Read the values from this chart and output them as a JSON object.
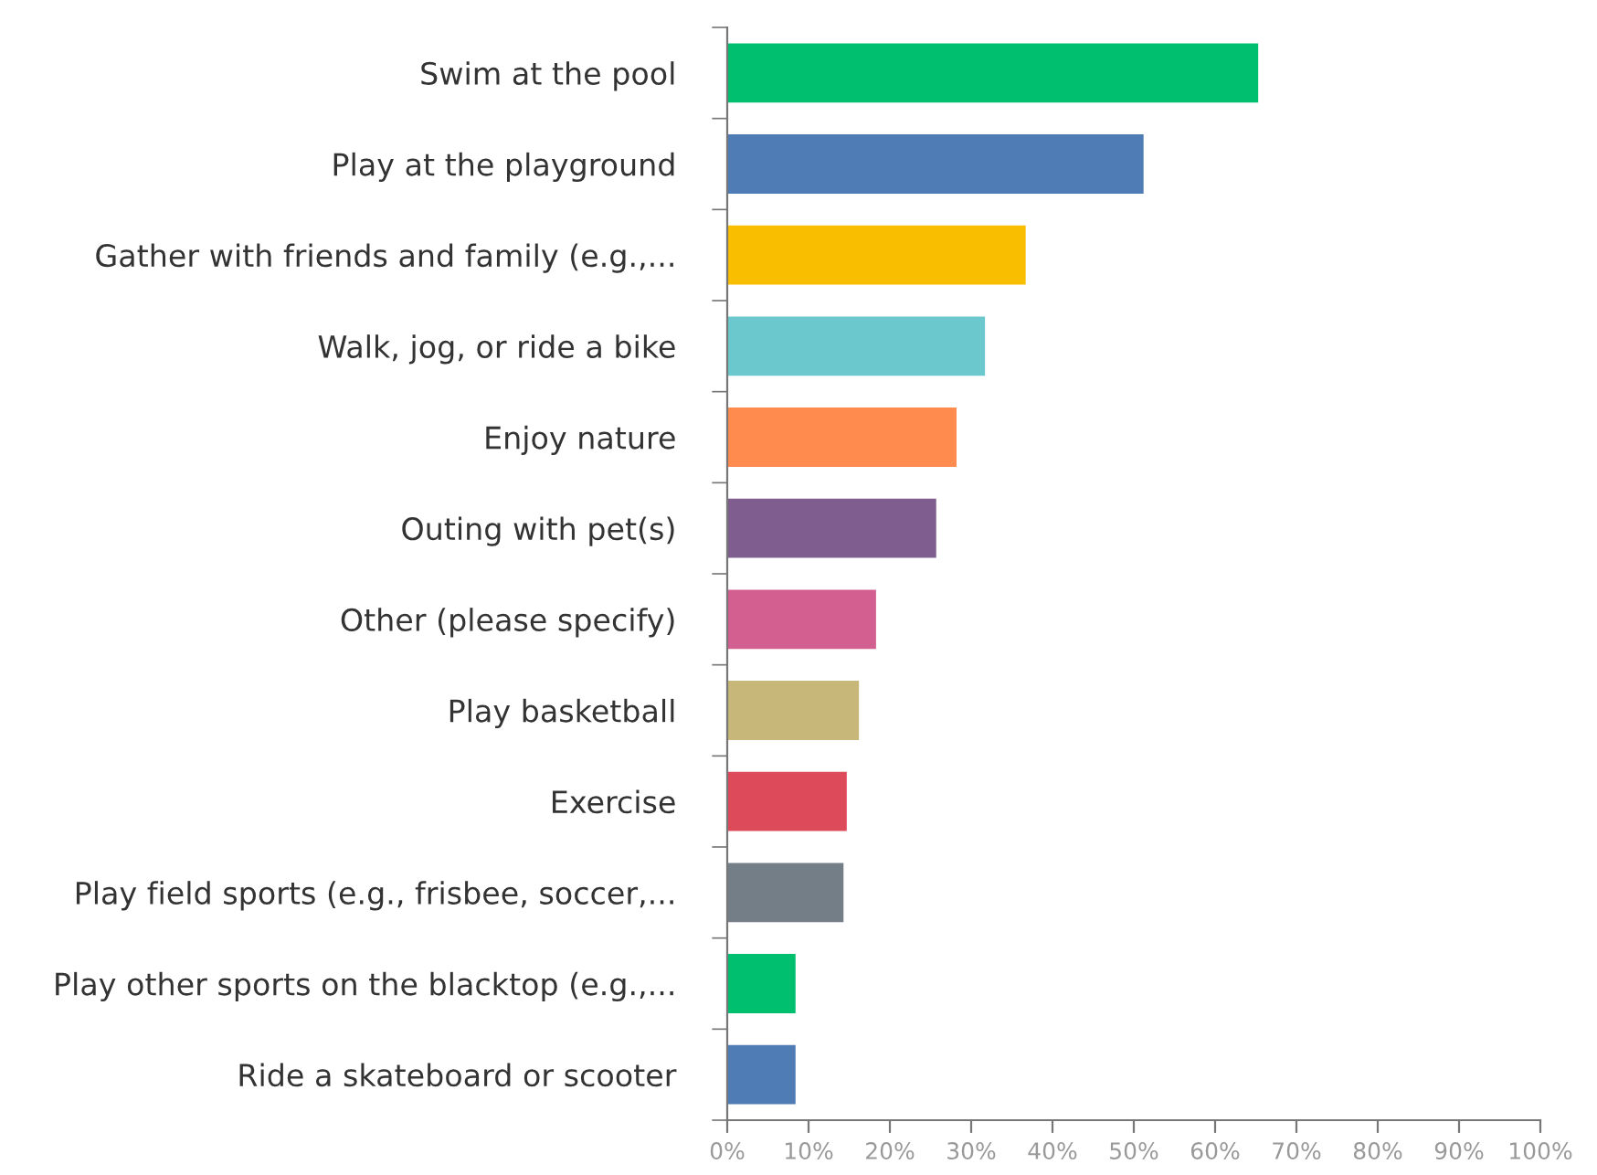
{
  "chart_data": {
    "type": "bar",
    "orientation": "horizontal",
    "categories": [
      "Swim at the pool",
      "Play at the playground",
      "Gather with friends and family (e.g.,...",
      "Walk, jog, or ride a bike",
      "Enjoy nature",
      "Outing with pet(s)",
      "Other (please specify)",
      "Play basketball",
      "Exercise",
      "Play field sports (e.g., frisbee, soccer,...",
      "Play other sports on the blacktop (e.g.,...",
      "Ride a skateboard or scooter"
    ],
    "values": [
      65.3,
      51.2,
      36.7,
      31.7,
      28.2,
      25.7,
      18.3,
      16.2,
      14.7,
      14.3,
      8.4,
      8.4
    ],
    "colors": [
      "#00bf6f",
      "#507cb6",
      "#f9be00",
      "#6bc8cd",
      "#ff8b4f",
      "#7f5e8f",
      "#d25f90",
      "#c7b879",
      "#dd4b5a",
      "#747e86",
      "#00bf6f",
      "#507cb6"
    ],
    "xlim": [
      0,
      100
    ],
    "xticks": [
      {
        "value": 0,
        "label": "0%"
      },
      {
        "value": 10,
        "label": "10%"
      },
      {
        "value": 20,
        "label": "20%"
      },
      {
        "value": 30,
        "label": "30%"
      },
      {
        "value": 40,
        "label": "40%"
      },
      {
        "value": 50,
        "label": "50%"
      },
      {
        "value": 60,
        "label": "60%"
      },
      {
        "value": 70,
        "label": "70%"
      },
      {
        "value": 80,
        "label": "80%"
      },
      {
        "value": 90,
        "label": "90%"
      },
      {
        "value": 100,
        "label": "100%"
      }
    ],
    "grid": false
  }
}
